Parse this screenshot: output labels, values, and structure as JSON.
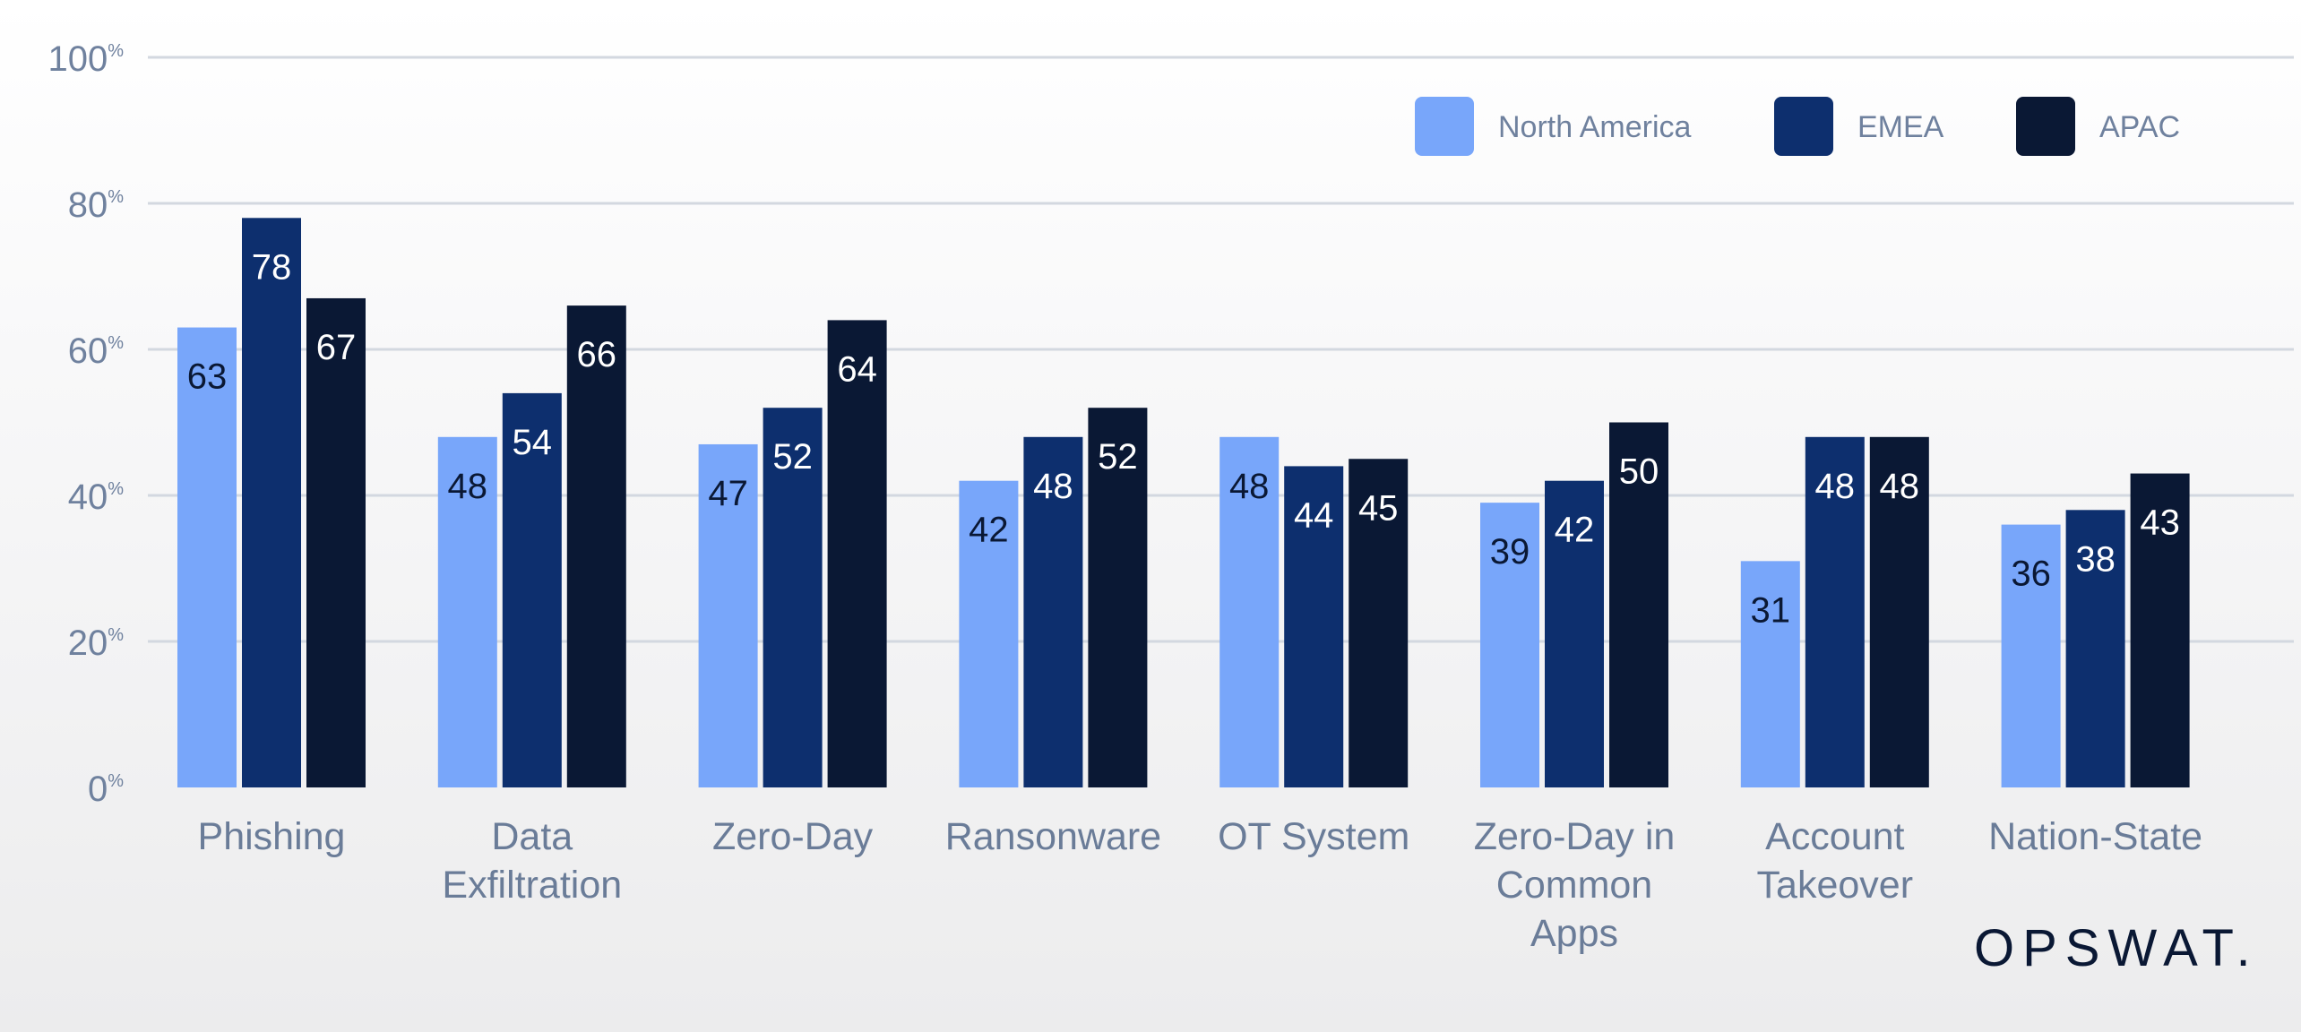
{
  "chart_data": {
    "type": "bar",
    "categories": [
      [
        "Phishing"
      ],
      [
        "Data",
        "Exfiltration"
      ],
      [
        "Zero-Day"
      ],
      [
        "Ransonware"
      ],
      [
        "OT System"
      ],
      [
        "Zero-Day in",
        "Common",
        "Apps"
      ],
      [
        "Account",
        "Takeover"
      ],
      [
        "Nation-State"
      ]
    ],
    "series": [
      {
        "name": "North America",
        "color": "#78a6fa",
        "label_color": "#0a1834",
        "values": [
          63,
          48,
          47,
          42,
          48,
          39,
          31,
          36
        ]
      },
      {
        "name": "EMEA",
        "color": "#0d2f6e",
        "label_color": "#ffffff",
        "values": [
          78,
          54,
          52,
          48,
          44,
          42,
          48,
          38
        ]
      },
      {
        "name": "APAC",
        "color": "#0a1834",
        "label_color": "#ffffff",
        "values": [
          67,
          66,
          64,
          52,
          45,
          50,
          48,
          43
        ]
      }
    ],
    "yticks": [
      0,
      20,
      40,
      60,
      80,
      100
    ],
    "ytick_suffix": "%",
    "ylim": [
      0,
      100
    ],
    "grid": true,
    "legend_position": "top-right",
    "title": "",
    "xlabel": "",
    "ylabel": ""
  },
  "logo": "OPSWAT."
}
